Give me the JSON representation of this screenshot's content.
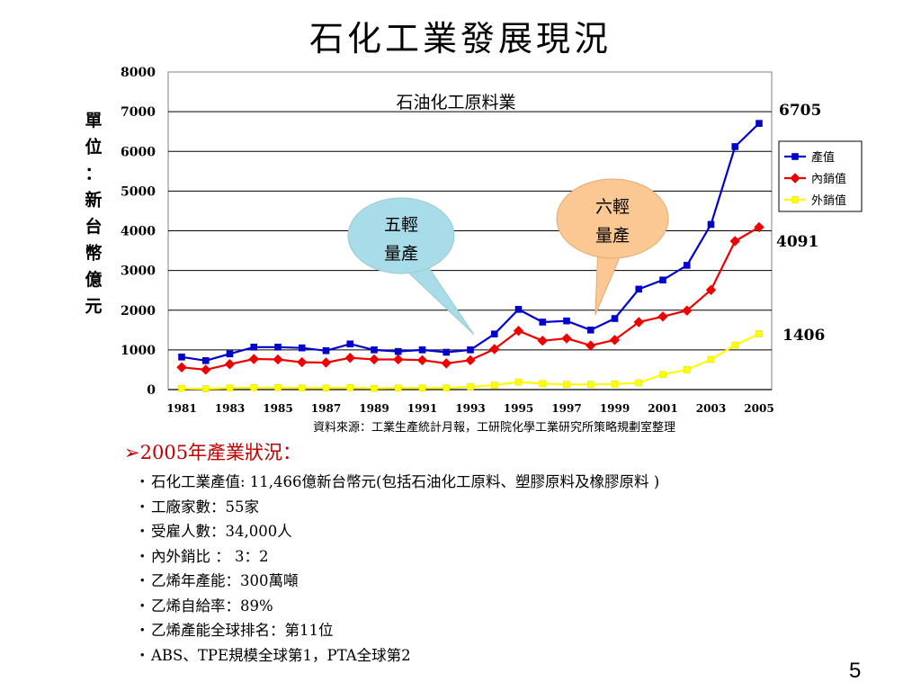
{
  "slide": {
    "title": "石化工業發展現況",
    "source_note": "資料來源：工業生產統計月報，工研院化學工業研究所策略規劃室整理",
    "section_heading": "2005年產業狀況：",
    "bullets": [
      "石化工業產值: 11,466億新台幣元(包括石油化工原料、塑膠原料及橡膠原料 )",
      "工廠家數：55家",
      "受雇人數：34,000人",
      "內外銷比 ：  3：2",
      "乙烯年產能：300萬噸",
      "乙烯自給率：89%",
      "乙烯產能全球排名：第11位",
      "ABS、TPE規模全球第1，PTA全球第2"
    ],
    "page_number": "5"
  },
  "chart_data": {
    "type": "line",
    "title": "石油化工原料業",
    "ylabel": "單位：新台幣億元",
    "xlabel": "",
    "ylim": [
      0,
      8000
    ],
    "yticks": [
      0,
      1000,
      2000,
      3000,
      4000,
      5000,
      6000,
      7000,
      8000
    ],
    "x": [
      1981,
      1982,
      1983,
      1984,
      1985,
      1986,
      1987,
      1988,
      1989,
      1990,
      1991,
      1992,
      1993,
      1994,
      1995,
      1996,
      1997,
      1998,
      1999,
      2000,
      2001,
      2002,
      2003,
      2004,
      2005
    ],
    "xtick_labels": [
      "1981",
      "1983",
      "1985",
      "1987",
      "1989",
      "1991",
      "1993",
      "1995",
      "1997",
      "1999",
      "2001",
      "2003",
      "2005"
    ],
    "grid": "horizontal",
    "legend_position": "right",
    "series": [
      {
        "name": "產值",
        "color": "#0000cc",
        "marker": "square",
        "values": [
          820,
          730,
          900,
          1070,
          1070,
          1050,
          980,
          1150,
          1000,
          960,
          1000,
          940,
          1000,
          1400,
          2020,
          1700,
          1730,
          1500,
          1790,
          2530,
          2760,
          3130,
          4160,
          6120,
          6705
        ]
      },
      {
        "name": "內銷值",
        "color": "#ee0000",
        "marker": "diamond",
        "values": [
          560,
          500,
          640,
          770,
          760,
          690,
          680,
          800,
          760,
          760,
          740,
          660,
          740,
          1020,
          1480,
          1230,
          1290,
          1110,
          1250,
          1700,
          1840,
          1990,
          2510,
          3740,
          4091
        ]
      },
      {
        "name": "外銷值",
        "color": "#ffff00",
        "marker": "square",
        "values": [
          30,
          20,
          40,
          50,
          50,
          40,
          40,
          50,
          30,
          40,
          40,
          40,
          70,
          110,
          190,
          150,
          130,
          130,
          140,
          170,
          380,
          500,
          760,
          1120,
          1406
        ]
      }
    ],
    "end_labels": [
      "6705",
      "4091",
      "1406"
    ],
    "annotations": [
      {
        "text_lines": [
          "五輕",
          "量產"
        ],
        "color": "#a8dce8",
        "points_to_year": 1993
      },
      {
        "text_lines": [
          "六輕",
          "量產"
        ],
        "color": "#fbc792",
        "points_to_year": 1998
      }
    ]
  }
}
